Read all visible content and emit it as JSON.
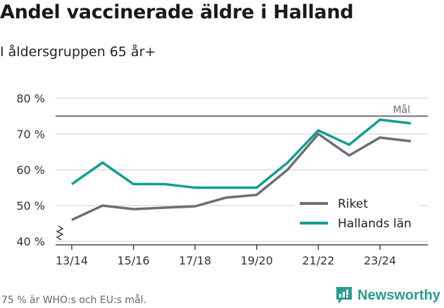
{
  "header": {
    "title": "Andel vaccinerade äldre i Halland",
    "subtitle": "I åldersgruppen 65 år+"
  },
  "footer": {
    "note": "75 % är WHO:s och EU:s mål.",
    "brand": "Newsworthy"
  },
  "colors": {
    "riket": "#6e6c75",
    "halland": "#0f9e94",
    "target": "#6e6c75",
    "grid": "#dddddd"
  },
  "chart_data": {
    "type": "line",
    "title": "Andel vaccinerade äldre i Halland",
    "subtitle": "I åldersgruppen 65 år+",
    "xlabel": "",
    "ylabel": "",
    "x": [
      "13/14",
      "14/15",
      "15/16",
      "16/17",
      "17/18",
      "18/19",
      "19/20",
      "20/21",
      "21/22",
      "22/23",
      "23/24",
      "24/25"
    ],
    "x_tick_labels": [
      "13/14",
      "15/16",
      "17/18",
      "19/20",
      "21/22",
      "23/24"
    ],
    "y_tick_labels": [
      "40 %",
      "50 %",
      "60 %",
      "70 %",
      "80 %"
    ],
    "ylim": [
      40,
      80
    ],
    "grid": true,
    "series": [
      {
        "name": "Riket",
        "values": [
          46,
          50,
          49,
          49.4,
          49.8,
          52.2,
          53,
          60,
          70,
          64,
          69,
          68
        ]
      },
      {
        "name": "Hallands län",
        "values": [
          56,
          62,
          56,
          56,
          55,
          55,
          55,
          62,
          71,
          67,
          74,
          73
        ]
      }
    ],
    "annotations": [
      {
        "type": "hline",
        "y": 75,
        "label": "Mål"
      }
    ],
    "legend": {
      "position": "lower right",
      "entries": [
        "Riket",
        "Hallands län"
      ]
    }
  }
}
